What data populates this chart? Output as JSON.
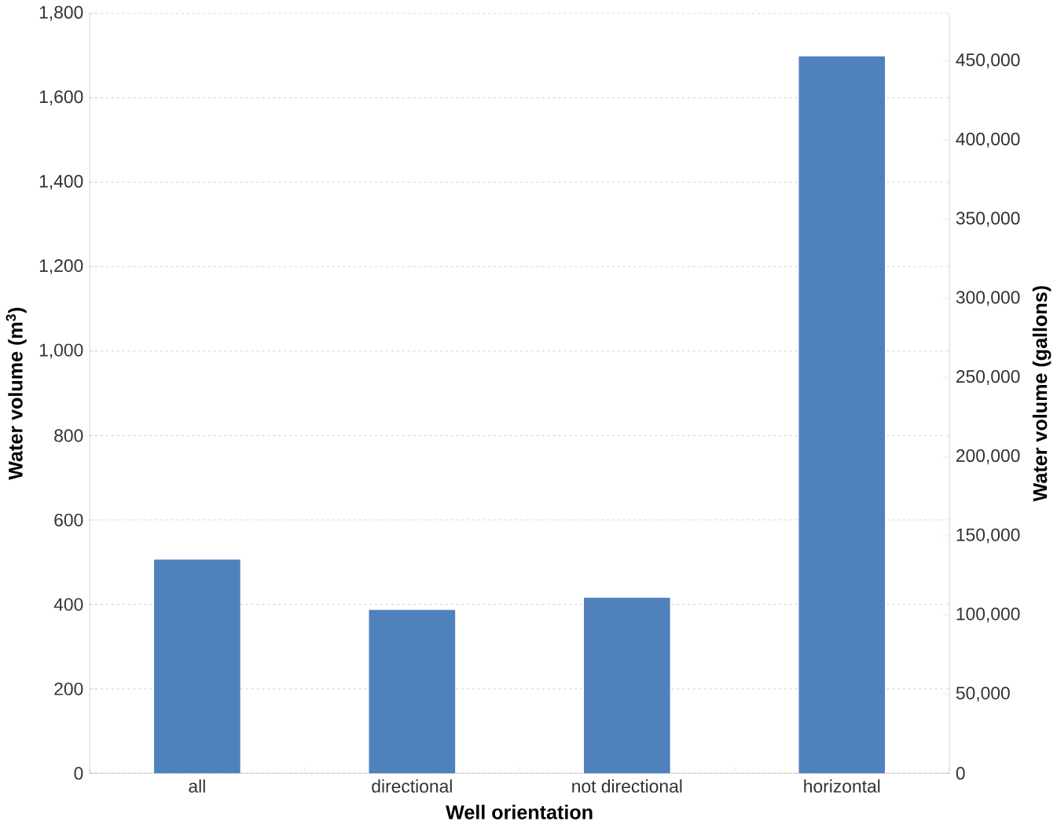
{
  "chart_data": {
    "type": "bar",
    "xlabel": "Well orientation",
    "ylabel": "Water volume (m$^{3}$)",
    "y2label": "Water volume (gallons)",
    "categories": [
      "all",
      "directional",
      "not directional",
      "horizontal"
    ],
    "values": [
      506,
      387,
      416,
      1698
    ],
    "color": "#4f81bd",
    "ylim": [
      0,
      1800
    ],
    "yticks": [
      {
        "value": 0,
        "label": "0"
      },
      {
        "value": 200,
        "label": "200"
      },
      {
        "value": 400,
        "label": "400"
      },
      {
        "value": 600,
        "label": "600"
      },
      {
        "value": 800,
        "label": "800"
      },
      {
        "value": 1000,
        "label": "1,000"
      },
      {
        "value": 1200,
        "label": "1,200"
      },
      {
        "value": 1400,
        "label": "1,400"
      },
      {
        "value": 1600,
        "label": "1,600"
      },
      {
        "value": 1800,
        "label": "1,800"
      }
    ],
    "y2lim": [
      0,
      480000
    ],
    "y2ticks": [
      {
        "value": 0,
        "label": "0"
      },
      {
        "value": 50000,
        "label": "50,000"
      },
      {
        "value": 100000,
        "label": "100,000"
      },
      {
        "value": 150000,
        "label": "150,000"
      },
      {
        "value": 200000,
        "label": "200,000"
      },
      {
        "value": 250000,
        "label": "250,000"
      },
      {
        "value": 300000,
        "label": "300,000"
      },
      {
        "value": 350000,
        "label": "350,000"
      },
      {
        "value": 400000,
        "label": "400,000"
      },
      {
        "value": 450000,
        "label": "450,000"
      }
    ],
    "grid": "y"
  }
}
